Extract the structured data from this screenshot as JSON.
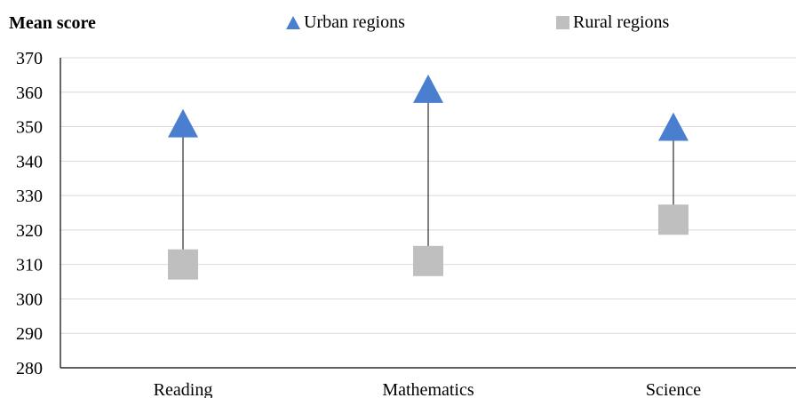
{
  "chart_data": {
    "type": "scatter",
    "ylabel": "Mean score",
    "categories": [
      "Reading",
      "Mathematics",
      "Science"
    ],
    "ylim": [
      280,
      370
    ],
    "ytick_step": 10,
    "grid": true,
    "legend_position": "top",
    "series": [
      {
        "name": "Urban regions",
        "marker": "triangle",
        "color": "#4a7fd0",
        "values": [
          351,
          361,
          350
        ]
      },
      {
        "name": "Rural regions",
        "marker": "square",
        "color": "#bfbfbf",
        "values": [
          310,
          311,
          323
        ]
      }
    ]
  }
}
